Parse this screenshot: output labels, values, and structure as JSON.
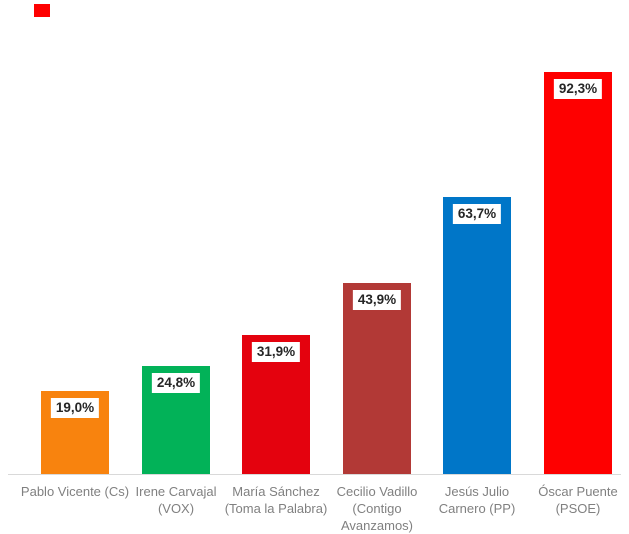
{
  "legend": {
    "marker_color": "#fe0000",
    "position": "top-left"
  },
  "chart_data": {
    "type": "bar",
    "title": "",
    "xlabel": "",
    "ylabel": "",
    "ylim": [
      0,
      100
    ],
    "grid": false,
    "axis_line_color": "#d9d9d9",
    "category_label_color": "#808080",
    "value_label_text_color": "#262626",
    "value_label_background": "#ffffff",
    "categories": [
      "Pablo Vicente (Cs)",
      "Irene Carvajal (VOX)",
      "María Sánchez (Toma la Palabra)",
      "Cecilio Vadillo (Contigo Avanzamos)",
      "Jesús Julio Carnero (PP)",
      "Óscar Puente (PSOE)"
    ],
    "category_lines": [
      [
        "Pablo Vicente (Cs)"
      ],
      [
        "Irene Carvajal",
        "(VOX)"
      ],
      [
        "María Sánchez",
        "(Toma la Palabra)"
      ],
      [
        "Cecilio Vadillo",
        "(Contigo",
        "Avanzamos)"
      ],
      [
        "Jesús Julio",
        "Carnero (PP)"
      ],
      [
        "Óscar Puente",
        "(PSOE)"
      ]
    ],
    "values": [
      19.0,
      24.8,
      31.9,
      43.9,
      63.7,
      92.3
    ],
    "value_labels": [
      "19,0%",
      "24,8%",
      "31,9%",
      "43,9%",
      "63,7%",
      "92,3%"
    ],
    "colors": [
      "#f8830e",
      "#02b258",
      "#e4020e",
      "#b23936",
      "#0076c8",
      "#fe0000"
    ]
  }
}
